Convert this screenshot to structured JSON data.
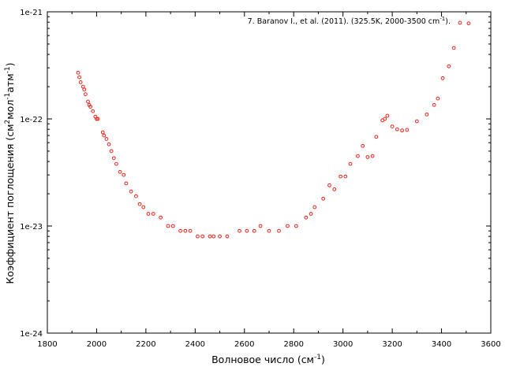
{
  "chart_data": {
    "type": "scatter",
    "legend": {
      "text": "7. Baranov I., et al. (2011). (325.5K, 2000-3500 cm",
      "superscript": "-1",
      "suffix": ").",
      "placement": "top-right"
    },
    "xlabel": {
      "text": "Волновое число (см",
      "sup": "-1",
      "tail": ")"
    },
    "ylabel": {
      "parts": [
        {
          "t": "Коэффициент поглощения (см",
          "sup": false
        },
        {
          "t": "2",
          "sup": true
        },
        {
          "t": "мол",
          "sup": false
        },
        {
          "t": "-1",
          "sup": true
        },
        {
          "t": "атм",
          "sup": false
        },
        {
          "t": "-1",
          "sup": true
        },
        {
          "t": ")",
          "sup": false
        }
      ]
    },
    "xlim": [
      1800,
      3600
    ],
    "ylim": [
      1e-24,
      1e-21
    ],
    "yscale": "log",
    "x_ticks": [
      1800,
      2000,
      2200,
      2400,
      2600,
      2800,
      3000,
      3200,
      3400,
      3600
    ],
    "x_tick_labels": [
      "1800",
      "2000",
      "2200",
      "2400",
      "2600",
      "2800",
      "3000",
      "3200",
      "3400",
      "3600"
    ],
    "y_ticks": [
      1e-24,
      1e-23,
      1e-22,
      1e-21
    ],
    "y_tick_labels": [
      "1e-24",
      "1e-23",
      "1e-22",
      "1e-21"
    ],
    "grid": false,
    "marker": {
      "shape": "circle-open",
      "color": "#e8231a"
    },
    "series": [
      {
        "x": [
          1925,
          1930,
          1935,
          1945,
          1950,
          1955,
          1965,
          1970,
          1975,
          1985,
          1995,
          2000,
          2005,
          2025,
          2030,
          2040,
          2050,
          2060,
          2070,
          2080,
          2095,
          2110,
          2120,
          2140,
          2160,
          2175,
          2190,
          2210,
          2230,
          2260,
          2290,
          2310,
          2340,
          2360,
          2380,
          2410,
          2430,
          2460,
          2475,
          2500,
          2530,
          2580,
          2610,
          2640,
          2665,
          2700,
          2740,
          2775,
          2810,
          2850,
          2870,
          2885,
          2920,
          2945,
          2965,
          2990,
          3010,
          3030,
          3060,
          3080,
          3100,
          3120,
          3135,
          3160,
          3170,
          3180,
          3200,
          3220,
          3240,
          3260,
          3300,
          3340,
          3370,
          3385,
          3405,
          3430,
          3450,
          3475,
          3510
        ],
        "y": [
          2.7e-22,
          2.45e-22,
          2.2e-22,
          2e-22,
          1.88e-22,
          1.7e-22,
          1.45e-22,
          1.35e-22,
          1.3e-22,
          1.18e-22,
          1.05e-22,
          1e-22,
          1e-22,
          7.5e-23,
          7e-23,
          6.5e-23,
          5.8e-23,
          5e-23,
          4.3e-23,
          3.8e-23,
          3.2e-23,
          3e-23,
          2.5e-23,
          2.1e-23,
          1.9e-23,
          1.6e-23,
          1.5e-23,
          1.3e-23,
          1.3e-23,
          1.2e-23,
          1e-23,
          1e-23,
          9e-24,
          9e-24,
          9e-24,
          8e-24,
          8e-24,
          8e-24,
          8e-24,
          8e-24,
          8e-24,
          9e-24,
          9e-24,
          9e-24,
          1e-23,
          9e-24,
          9e-24,
          1e-23,
          1e-23,
          1.2e-23,
          1.3e-23,
          1.5e-23,
          1.8e-23,
          2.4e-23,
          2.2e-23,
          2.9e-23,
          2.9e-23,
          3.8e-23,
          4.5e-23,
          5.6e-23,
          4.4e-23,
          4.5e-23,
          6.8e-23,
          9.7e-23,
          1e-22,
          1.07e-22,
          8.5e-23,
          8e-23,
          7.8e-23,
          7.9e-23,
          9.5e-23,
          1.1e-22,
          1.35e-22,
          1.55e-22,
          2.4e-22,
          3.1e-22,
          4.6e-22,
          7.9e-22,
          7.8e-22
        ]
      }
    ]
  }
}
